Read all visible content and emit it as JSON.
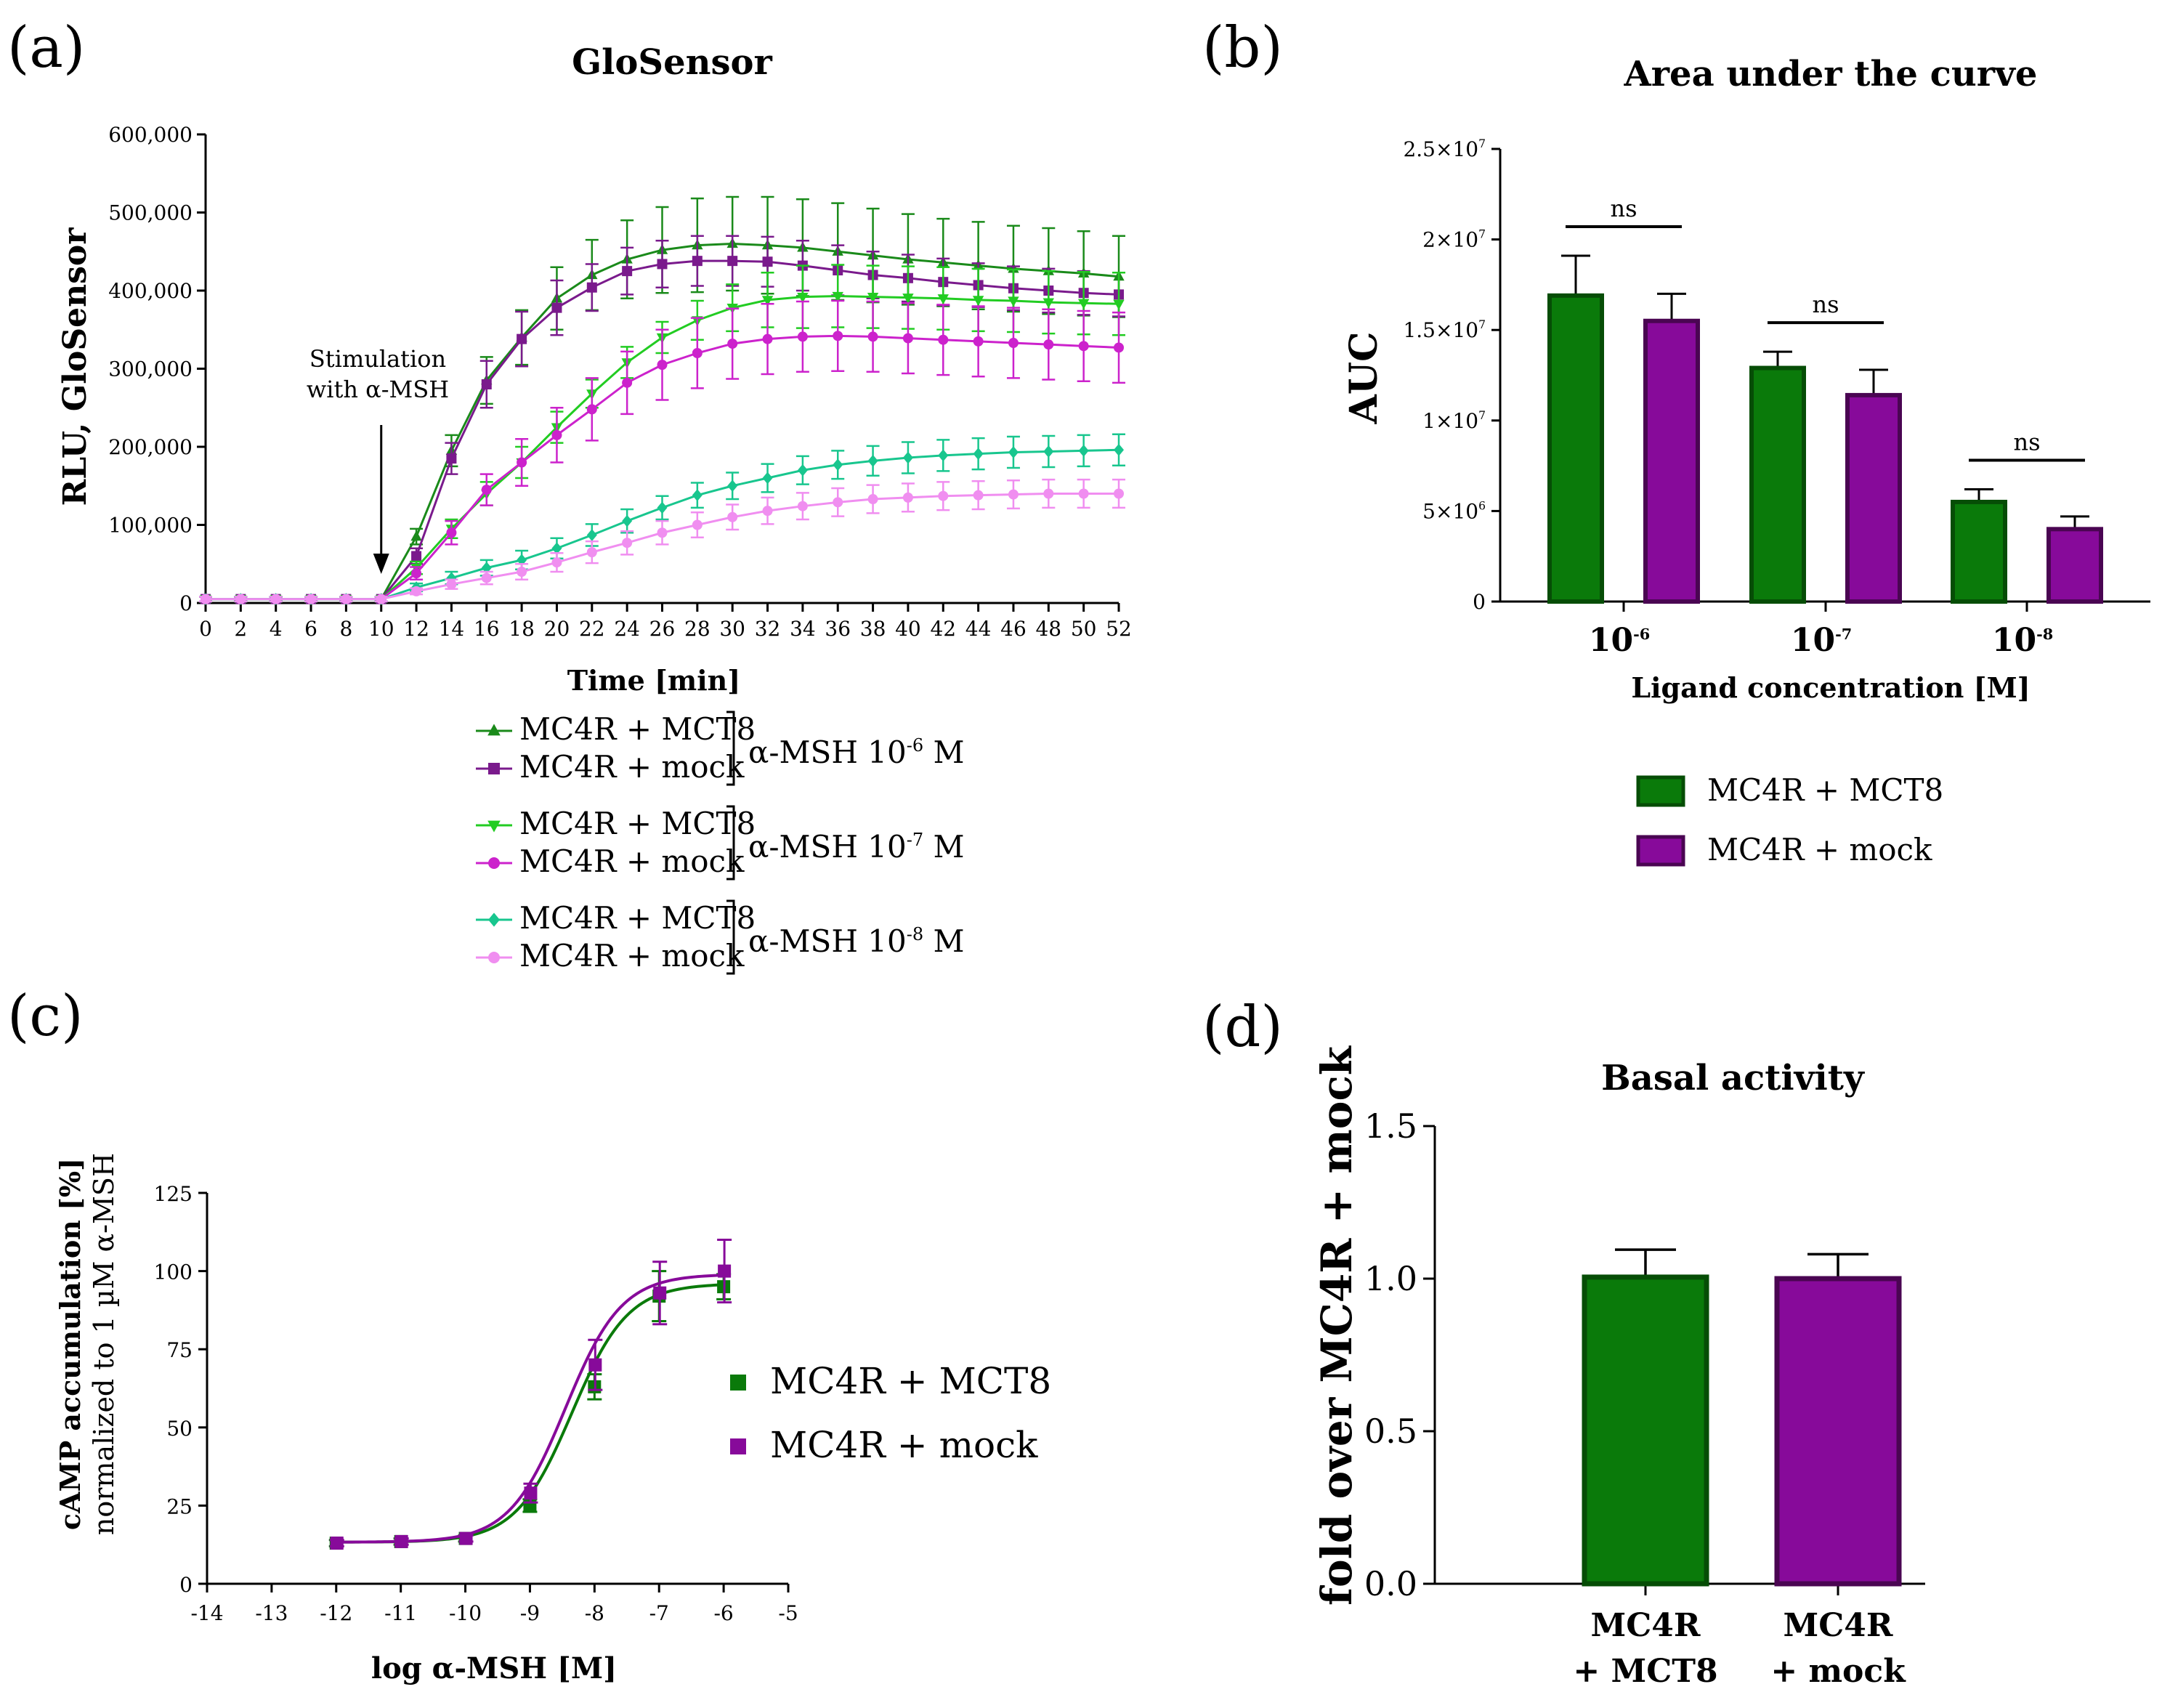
{
  "panels": {
    "a": "(a)",
    "b": "(b)",
    "c": "(c)",
    "d": "(d)"
  },
  "colors": {
    "green_dark": "#1a8a1a",
    "purple_dark": "#7a1a8c",
    "green_mid": "#22cc22",
    "magenta": "#cc22cc",
    "teal": "#18c68e",
    "pink": "#f08ef0",
    "bar_green": "#0a7a0a",
    "bar_green_edge": "#064d06",
    "bar_purple": "#870a9a",
    "bar_purple_edge": "#4a0552"
  },
  "chart_data": [
    {
      "id": "a",
      "type": "line",
      "title": "GloSensor",
      "xlabel": "Time [min]",
      "ylabel": "RLU, GloSensor",
      "xlim": [
        0,
        52
      ],
      "ylim": [
        0,
        600000
      ],
      "xticks": [
        "0",
        "2",
        "4",
        "6",
        "8",
        "10",
        "12",
        "14",
        "16",
        "18",
        "20",
        "22",
        "24",
        "26",
        "28",
        "30",
        "32",
        "34",
        "36",
        "38",
        "40",
        "42",
        "44",
        "46",
        "48",
        "50",
        "52"
      ],
      "yticks": [
        "0",
        "100,000",
        "200,000",
        "300,000",
        "400,000",
        "500,000",
        "600,000"
      ],
      "annotation": [
        "Stimulation",
        "with α-MSH"
      ],
      "annotation_x": 10,
      "x": [
        0,
        2,
        4,
        6,
        8,
        10,
        12,
        14,
        16,
        18,
        20,
        22,
        24,
        26,
        28,
        30,
        32,
        34,
        36,
        38,
        40,
        42,
        44,
        46,
        48,
        50,
        52
      ],
      "series": [
        {
          "name": "MC4R + MCT8",
          "group": "α-MSH 10⁻⁶ M",
          "color_key": "green_dark",
          "marker": "triangle-up",
          "values": [
            5000,
            5000,
            5000,
            5000,
            5000,
            5000,
            85000,
            195000,
            285000,
            340000,
            390000,
            420000,
            440000,
            452000,
            458000,
            460000,
            458000,
            455000,
            450000,
            445000,
            440000,
            436000,
            432000,
            428000,
            425000,
            422000,
            418000
          ],
          "errors": [
            3000,
            3000,
            3000,
            3000,
            3000,
            3000,
            10000,
            20000,
            30000,
            35000,
            40000,
            45000,
            50000,
            55000,
            60000,
            60000,
            62000,
            62000,
            62000,
            60000,
            58000,
            56000,
            56000,
            55000,
            55000,
            54000,
            52000
          ]
        },
        {
          "name": "MC4R + mock",
          "group": "α-MSH 10⁻⁶ M",
          "color_key": "purple_dark",
          "marker": "square",
          "values": [
            5000,
            5000,
            5000,
            5000,
            5000,
            5000,
            60000,
            185000,
            280000,
            338000,
            378000,
            404000,
            425000,
            434000,
            438000,
            438000,
            437000,
            432000,
            426000,
            420000,
            416000,
            411000,
            407000,
            403000,
            400000,
            397000,
            395000
          ],
          "errors": [
            3000,
            3000,
            3000,
            3000,
            3000,
            3000,
            10000,
            20000,
            30000,
            35000,
            35000,
            30000,
            30000,
            30000,
            32000,
            32000,
            32000,
            32000,
            32000,
            30000,
            30000,
            30000,
            28000,
            28000,
            28000,
            28000,
            28000
          ]
        },
        {
          "name": "MC4R + MCT8",
          "group": "α-MSH 10⁻⁷ M",
          "color_key": "green_mid",
          "marker": "triangle-down",
          "values": [
            5000,
            5000,
            5000,
            5000,
            5000,
            5000,
            45000,
            95000,
            140000,
            180000,
            225000,
            268000,
            308000,
            340000,
            362000,
            378000,
            388000,
            392000,
            393000,
            392000,
            391000,
            390000,
            388000,
            387000,
            385000,
            384000,
            383000
          ],
          "errors": [
            3000,
            3000,
            3000,
            3000,
            3000,
            3000,
            8000,
            12000,
            15000,
            20000,
            20000,
            18000,
            20000,
            20000,
            25000,
            30000,
            35000,
            40000,
            40000,
            40000,
            40000,
            40000,
            40000,
            40000,
            40000,
            40000,
            40000
          ]
        },
        {
          "name": "MC4R + mock",
          "group": "α-MSH 10⁻⁷ M",
          "color_key": "magenta",
          "marker": "circle",
          "values": [
            5000,
            5000,
            5000,
            5000,
            5000,
            5000,
            38000,
            90000,
            145000,
            180000,
            215000,
            248000,
            282000,
            305000,
            320000,
            332000,
            338000,
            341000,
            342000,
            341000,
            339000,
            337000,
            335000,
            333000,
            331000,
            329000,
            327000
          ],
          "errors": [
            3000,
            3000,
            3000,
            3000,
            3000,
            3000,
            8000,
            15000,
            20000,
            30000,
            35000,
            40000,
            40000,
            45000,
            45000,
            45000,
            45000,
            45000,
            45000,
            45000,
            45000,
            45000,
            45000,
            45000,
            45000,
            45000,
            45000
          ]
        },
        {
          "name": "MC4R + MCT8",
          "group": "α-MSH 10⁻⁸ M",
          "color_key": "teal",
          "marker": "diamond",
          "values": [
            5000,
            5000,
            5000,
            5000,
            5000,
            5000,
            20000,
            32000,
            45000,
            55000,
            70000,
            87000,
            105000,
            122000,
            138000,
            150000,
            160000,
            170000,
            177000,
            182000,
            186000,
            189000,
            191000,
            193000,
            194000,
            195000,
            196000
          ],
          "errors": [
            3000,
            3000,
            3000,
            3000,
            3000,
            3000,
            5000,
            8000,
            10000,
            12000,
            13000,
            14000,
            15000,
            15000,
            16000,
            17000,
            18000,
            18000,
            18000,
            19000,
            20000,
            20000,
            20000,
            20000,
            20000,
            20000,
            20000
          ]
        },
        {
          "name": "MC4R + mock",
          "group": "α-MSH 10⁻⁸ M",
          "color_key": "pink",
          "marker": "hexagon",
          "values": [
            5000,
            5000,
            5000,
            5000,
            5000,
            5000,
            15000,
            24000,
            32000,
            40000,
            52000,
            65000,
            77000,
            90000,
            100000,
            110000,
            118000,
            124000,
            129000,
            133000,
            135000,
            137000,
            138000,
            139000,
            140000,
            140000,
            140000
          ],
          "errors": [
            3000,
            3000,
            3000,
            3000,
            3000,
            3000,
            4000,
            6000,
            8000,
            10000,
            12000,
            14000,
            15000,
            15000,
            16000,
            16000,
            17000,
            17000,
            18000,
            18000,
            18000,
            18000,
            18000,
            18000,
            18000,
            18000,
            18000
          ]
        }
      ],
      "legend_groups": [
        {
          "label": "α-MSH 10",
          "sup": "-6",
          "suffix": " M",
          "rows": [
            "MC4R + MCT8",
            "MC4R + mock"
          ]
        },
        {
          "label": "α-MSH 10",
          "sup": "-7",
          "suffix": " M",
          "rows": [
            "MC4R + MCT8",
            "MC4R + mock"
          ]
        },
        {
          "label": "α-MSH 10",
          "sup": "-8",
          "suffix": " M",
          "rows": [
            "MC4R + MCT8",
            "MC4R + mock"
          ]
        }
      ]
    },
    {
      "id": "b",
      "type": "bar",
      "title": "Area under the curve",
      "xlabel": "Ligand concentration [M]",
      "ylabel": "AUC",
      "ylim": [
        0,
        25000000
      ],
      "ytick_values": [
        0,
        5000000,
        10000000,
        15000000,
        20000000,
        25000000
      ],
      "yticks": [
        {
          "main": "0",
          "sup": ""
        },
        {
          "main": "5×10",
          "sup": "6"
        },
        {
          "main": "1×10",
          "sup": "7"
        },
        {
          "main": "1.5×10",
          "sup": "7"
        },
        {
          "main": "2×10",
          "sup": "7"
        },
        {
          "main": "2.5×10",
          "sup": "7"
        }
      ],
      "categories": [
        {
          "main": "10",
          "sup": "-6"
        },
        {
          "main": "10",
          "sup": "-7"
        },
        {
          "main": "10",
          "sup": "-8"
        }
      ],
      "series": [
        {
          "name": "MC4R + MCT8",
          "values": [
            16900000,
            12900000,
            5500000
          ],
          "errors": [
            2200000,
            900000,
            700000
          ]
        },
        {
          "name": "MC4R + mock",
          "values": [
            15500000,
            11400000,
            4000000
          ],
          "errors": [
            1500000,
            1400000,
            700000
          ]
        }
      ],
      "significance": [
        "ns",
        "ns",
        "ns"
      ]
    },
    {
      "id": "c",
      "type": "scatter",
      "xlabel": "log α-MSH [M]",
      "ylabel_line1": "cAMP accumulation [%]",
      "ylabel_line2": "normalized to 1 µM α-MSH",
      "xlim": [
        -14,
        -5
      ],
      "ylim": [
        0,
        125
      ],
      "xticks": [
        "-14",
        "-13",
        "-12",
        "-11",
        "-10",
        "-9",
        "-8",
        "-7",
        "-6",
        "-5"
      ],
      "yticks": [
        "0",
        "25",
        "50",
        "75",
        "100",
        "125"
      ],
      "x": [
        -12,
        -11,
        -10,
        -9,
        -8,
        -7,
        -6
      ],
      "series": [
        {
          "name": "MC4R + MCT8",
          "values": [
            13,
            13.5,
            14.5,
            25,
            63,
            92,
            95
          ],
          "errors": [
            1,
            1,
            1,
            2,
            4,
            8,
            4
          ],
          "logEC50": -8.35,
          "bottom": 13.3,
          "top": 96
        },
        {
          "name": "MC4R + mock",
          "values": [
            13,
            13.5,
            14.5,
            29,
            70,
            93,
            100
          ],
          "errors": [
            1,
            1,
            1,
            3,
            8,
            10,
            10
          ],
          "logEC50": -8.45,
          "bottom": 13.3,
          "top": 99
        }
      ]
    },
    {
      "id": "d",
      "type": "bar",
      "title": "Basal activity",
      "ylabel": "fold over MC4R + mock",
      "ylim": [
        0,
        1.5
      ],
      "yticks": [
        "0.0",
        "0.5",
        "1.0",
        "1.5"
      ],
      "categories": [
        {
          "line1": "MC4R",
          "line2": "+ MCT8"
        },
        {
          "line1": "MC4R",
          "line2": "+ mock"
        }
      ],
      "series": [
        {
          "name": "MC4R + MCT8",
          "value": 1.005,
          "error": 0.09
        },
        {
          "name": "MC4R + mock",
          "value": 1.0,
          "error": 0.08
        }
      ]
    }
  ]
}
